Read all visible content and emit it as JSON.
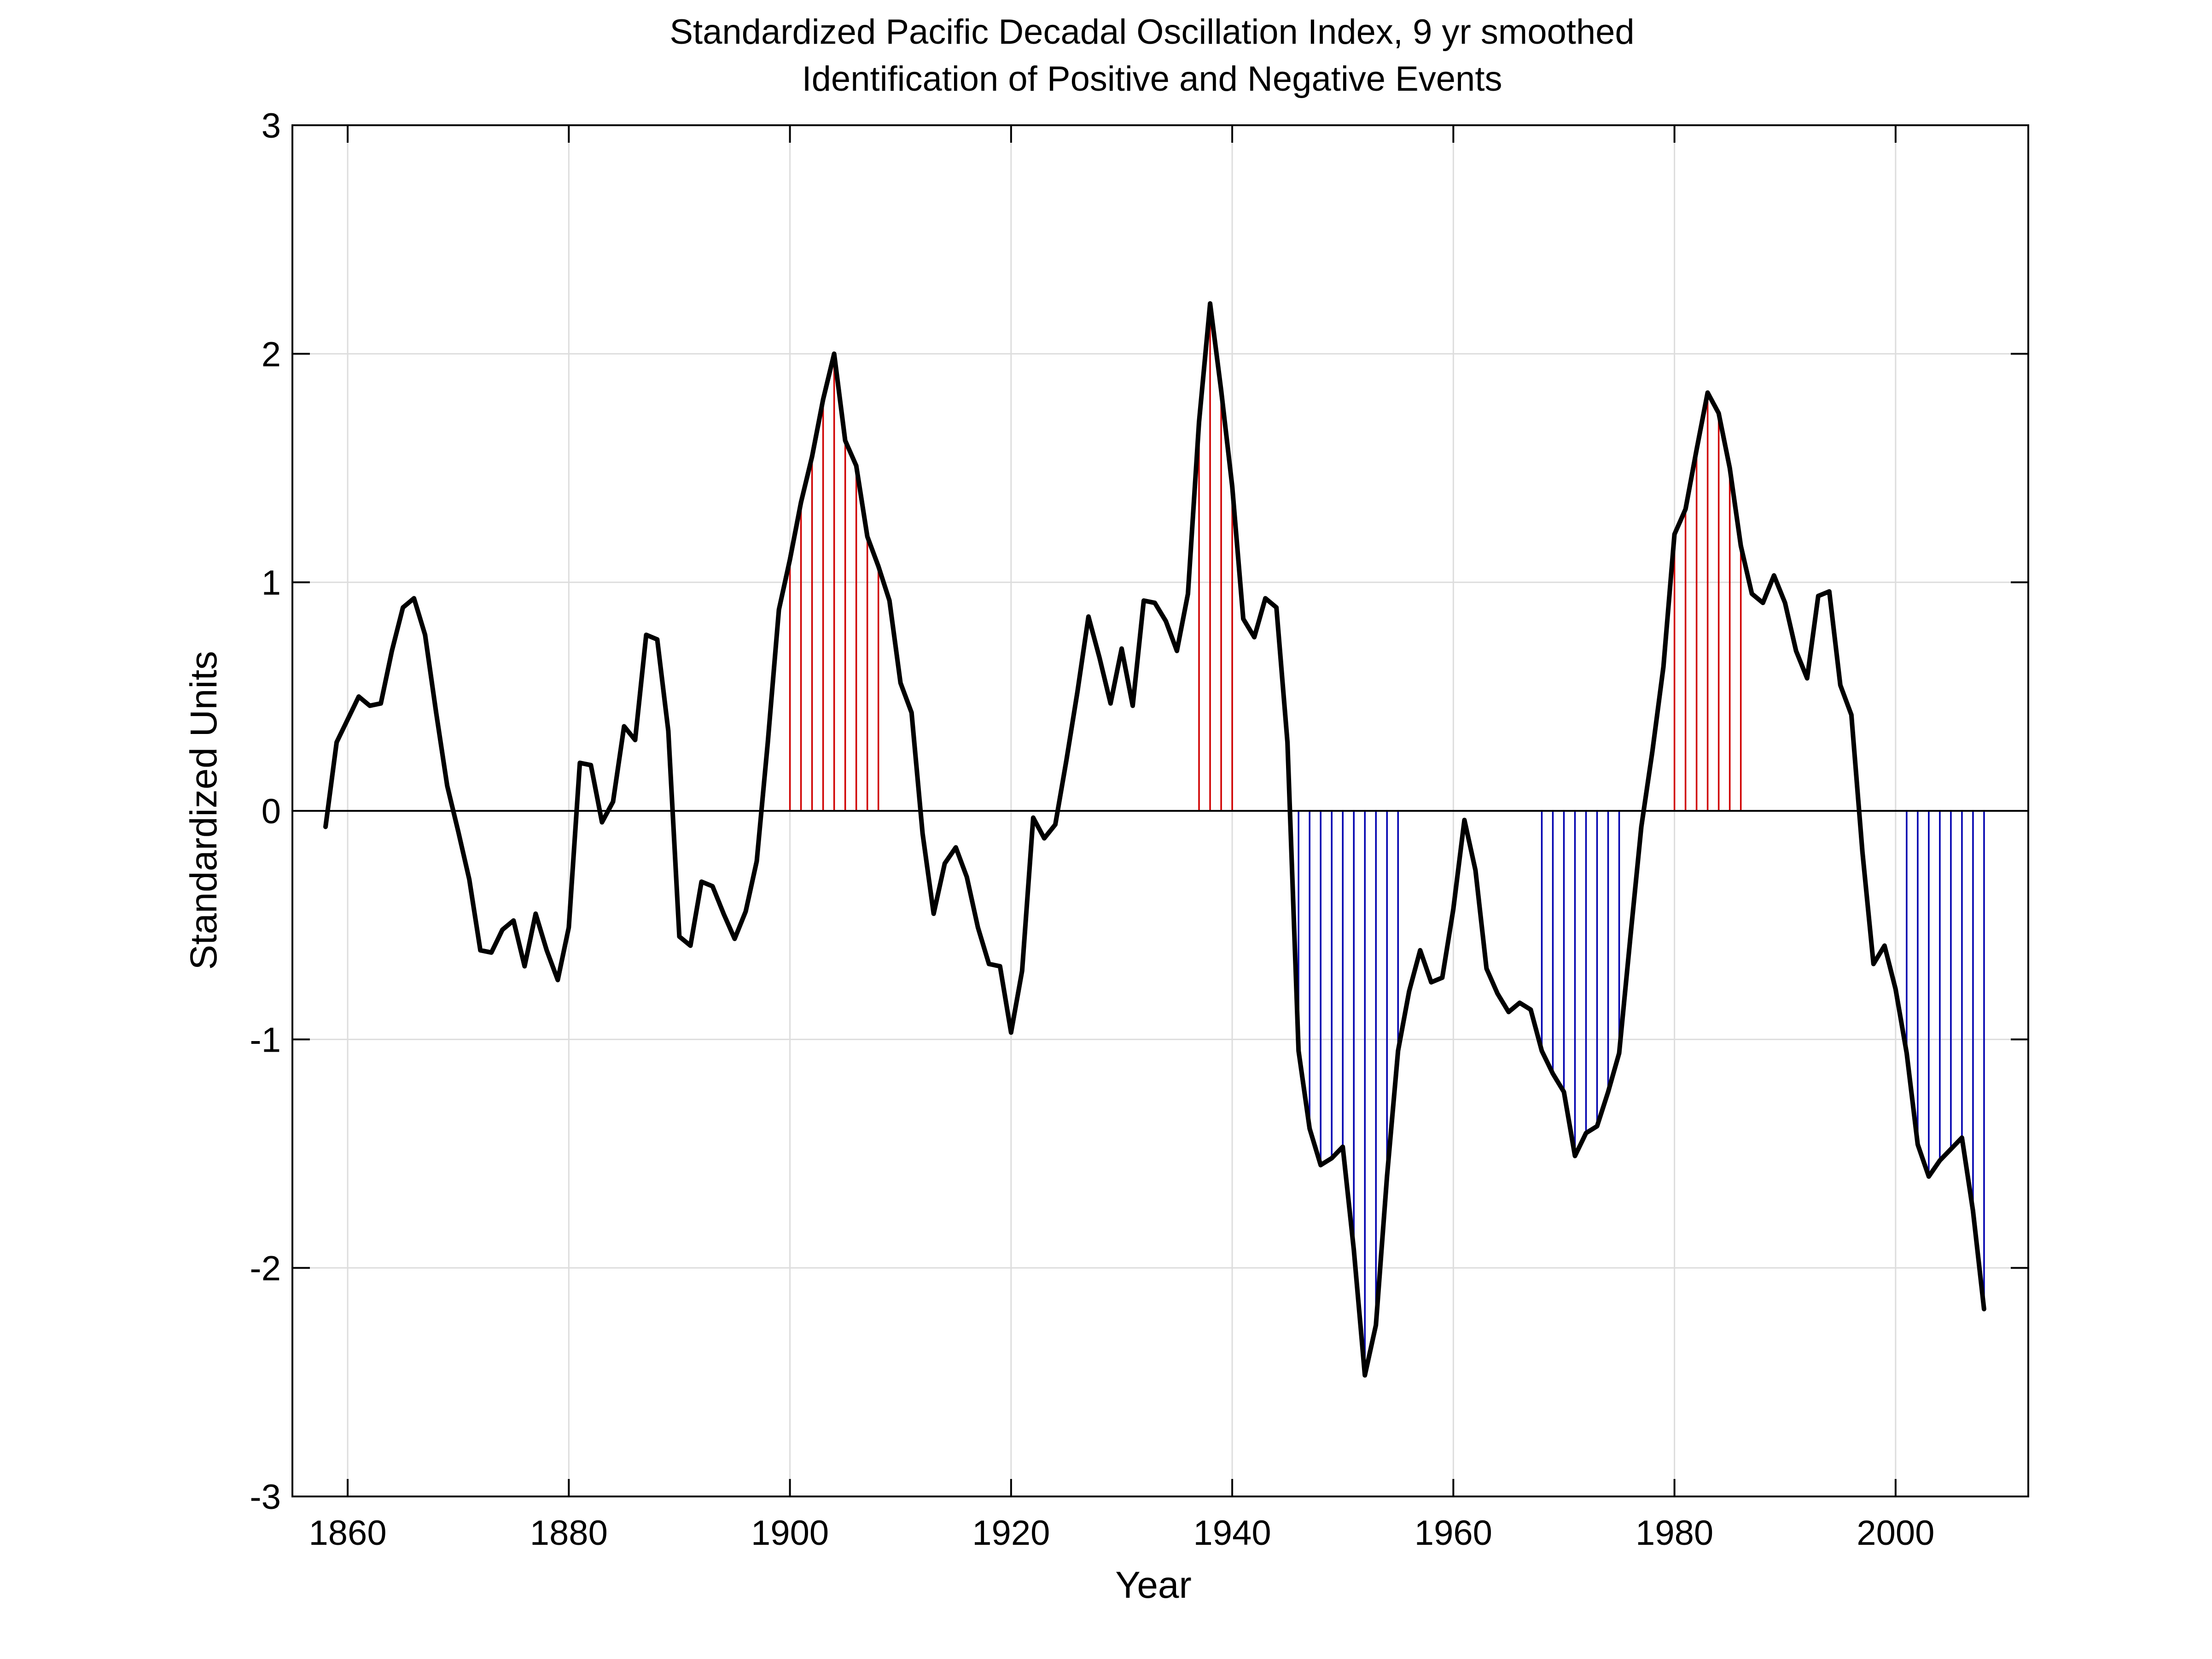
{
  "chart_data": {
    "type": "line",
    "title": "Standardized Pacific Decadal Oscillation Index, 9 yr smoothed",
    "subtitle": "Identification of Positive and Negative Events",
    "xlabel": "Year",
    "ylabel": "Standardized Units",
    "xlim": [
      1855,
      2012
    ],
    "ylim": [
      -3,
      3
    ],
    "xticks": [
      1860,
      1880,
      1900,
      1920,
      1940,
      1960,
      1980,
      2000
    ],
    "yticks": [
      -3,
      -2,
      -1,
      0,
      1,
      2,
      3
    ],
    "grid": true,
    "legend": "none",
    "colors": {
      "line": "#000000",
      "positive_event": "#d00000",
      "negative_event": "#0000b0",
      "grid": "#dddddd",
      "zero_line": "#000000"
    },
    "series": [
      {
        "x": [
          1858,
          1859,
          1860,
          1861,
          1862,
          1863,
          1864,
          1865,
          1866,
          1867,
          1868,
          1869,
          1870,
          1871,
          1872,
          1873,
          1874,
          1875,
          1876,
          1877,
          1878,
          1879,
          1880,
          1881,
          1882,
          1883,
          1884,
          1885,
          1886,
          1887,
          1888,
          1889,
          1890,
          1891,
          1892,
          1893,
          1894,
          1895,
          1896,
          1897,
          1898,
          1899,
          1900,
          1901,
          1902,
          1903,
          1904,
          1905,
          1906,
          1907,
          1908,
          1909,
          1910,
          1911,
          1912,
          1913,
          1914,
          1915,
          1916,
          1917,
          1918,
          1919,
          1920,
          1921,
          1922,
          1923,
          1924,
          1925,
          1926,
          1927,
          1928,
          1929,
          1930,
          1931,
          1932,
          1933,
          1934,
          1935,
          1936,
          1937,
          1938,
          1939,
          1940,
          1941,
          1942,
          1943,
          1944,
          1945,
          1946,
          1947,
          1948,
          1949,
          1950,
          1951,
          1952,
          1953,
          1954,
          1955,
          1956,
          1957,
          1958,
          1959,
          1960,
          1961,
          1962,
          1963,
          1964,
          1965,
          1966,
          1967,
          1968,
          1969,
          1970,
          1971,
          1972,
          1973,
          1974,
          1975,
          1976,
          1977,
          1978,
          1979,
          1980,
          1981,
          1982,
          1983,
          1984,
          1985,
          1986,
          1987,
          1988,
          1989,
          1990,
          1991,
          1992,
          1993,
          1994,
          1995,
          1996,
          1997,
          1998,
          1999,
          2000,
          2001,
          2002,
          2003,
          2004,
          2005,
          2006,
          2007,
          2008
        ],
        "values": [
          -0.07,
          0.3,
          0.4,
          0.5,
          0.46,
          0.47,
          0.7,
          0.89,
          0.93,
          0.77,
          0.43,
          0.11,
          -0.09,
          -0.3,
          -0.61,
          -0.62,
          -0.52,
          -0.48,
          -0.68,
          -0.45,
          -0.61,
          -0.74,
          -0.51,
          0.21,
          0.2,
          -0.05,
          0.04,
          0.37,
          0.31,
          0.77,
          0.75,
          0.35,
          -0.55,
          -0.59,
          -0.31,
          -0.33,
          -0.45,
          -0.56,
          -0.44,
          -0.22,
          0.3,
          0.88,
          1.1,
          1.35,
          1.55,
          1.8,
          2.0,
          1.62,
          1.51,
          1.2,
          1.07,
          0.92,
          0.56,
          0.43,
          -0.1,
          -0.45,
          -0.23,
          -0.16,
          -0.29,
          -0.51,
          -0.67,
          -0.68,
          -0.97,
          -0.7,
          -0.03,
          -0.12,
          -0.06,
          0.22,
          0.52,
          0.85,
          0.67,
          0.47,
          0.71,
          0.46,
          0.92,
          0.91,
          0.83,
          0.7,
          0.95,
          1.7,
          2.22,
          1.84,
          1.42,
          0.84,
          0.76,
          0.93,
          0.89,
          0.3,
          -1.05,
          -1.39,
          -1.55,
          -1.52,
          -1.47,
          -1.92,
          -2.47,
          -2.25,
          -1.6,
          -1.05,
          -0.79,
          -0.61,
          -0.75,
          -0.73,
          -0.43,
          -0.04,
          -0.26,
          -0.69,
          -0.8,
          -0.88,
          -0.84,
          -0.87,
          -1.05,
          -1.15,
          -1.23,
          -1.51,
          -1.41,
          -1.38,
          -1.23,
          -1.06,
          -0.56,
          -0.07,
          0.26,
          0.63,
          1.21,
          1.32,
          1.58,
          1.83,
          1.74,
          1.5,
          1.16,
          0.95,
          0.91,
          1.03,
          0.91,
          0.7,
          0.58,
          0.94,
          0.96,
          0.55,
          0.42,
          -0.18,
          -0.67,
          -0.59,
          -0.78,
          -1.06,
          -1.46,
          -1.6,
          -1.53,
          -1.48,
          -1.43,
          -1.75,
          -2.18
        ]
      }
    ],
    "events": {
      "positive": [
        1900,
        1901,
        1902,
        1903,
        1904,
        1905,
        1906,
        1907,
        1908,
        1937,
        1938,
        1939,
        1940,
        1980,
        1981,
        1982,
        1983,
        1984,
        1985,
        1986
      ],
      "negative": [
        1946,
        1947,
        1948,
        1949,
        1950,
        1951,
        1952,
        1953,
        1954,
        1955,
        1968,
        1969,
        1970,
        1971,
        1972,
        1973,
        1974,
        1975,
        2001,
        2002,
        2003,
        2004,
        2005,
        2006,
        2007,
        2008
      ]
    }
  }
}
